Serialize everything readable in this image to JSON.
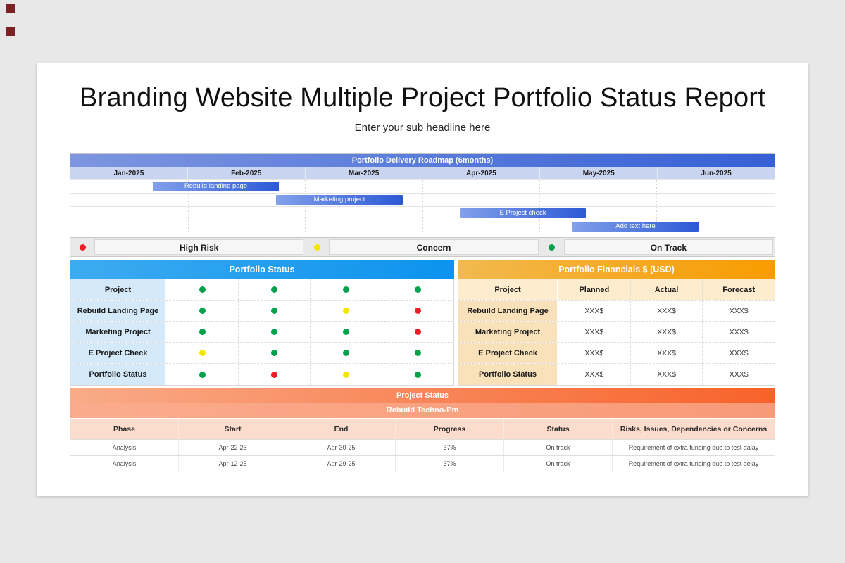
{
  "page": {
    "title": "Branding Website Multiple Project Portfolio Status Report",
    "subtitle": "Enter your sub headline here"
  },
  "roadmap": {
    "title": "Portfolio Delivery Roadmap (6months)",
    "months": [
      "Jan-2025",
      "Feb-2025",
      "Mar-2025",
      "Apr-2025",
      "May-2025",
      "Jun-2025"
    ],
    "bars": [
      {
        "label": "Rebuild landing page",
        "left": "11.7%",
        "width": "17.9%"
      },
      {
        "label": "Marketing project",
        "left": "29.2%",
        "width": "18.0%"
      },
      {
        "label": "E Project check",
        "left": "55.3%",
        "width": "17.9%"
      },
      {
        "label": "Add text here",
        "left": "71.3%",
        "width": "17.9%"
      }
    ]
  },
  "legend": {
    "items": [
      {
        "label": "High Risk",
        "color": "#ee1c25"
      },
      {
        "label": "Concern",
        "color": "#f2e600"
      },
      {
        "label": "On Track",
        "color": "#00a14b"
      }
    ]
  },
  "status_table": {
    "title": "Portfolio Status",
    "col_header": "Project",
    "header_dots": [
      "green",
      "green",
      "green",
      "green"
    ],
    "rows": [
      {
        "name": "Rebuild Landing Page",
        "dots": [
          "green",
          "green",
          "yellow",
          "red"
        ]
      },
      {
        "name": "Marketing Project",
        "dots": [
          "green",
          "green",
          "green",
          "red"
        ]
      },
      {
        "name": "E Project Check",
        "dots": [
          "yellow",
          "green",
          "green",
          "green"
        ]
      },
      {
        "name": "Portfolio Status",
        "dots": [
          "green",
          "red",
          "yellow",
          "green"
        ]
      }
    ]
  },
  "financials_table": {
    "title": "Portfolio Financials $ (USD)",
    "headers": [
      "Project",
      "Planned",
      "Actual",
      "Forecast"
    ],
    "rows": [
      {
        "name": "Rebuild Landing Page",
        "values": [
          "XXX$",
          "XXX$",
          "XXX$"
        ]
      },
      {
        "name": "Marketing Project",
        "values": [
          "XXX$",
          "XXX$",
          "XXX$"
        ]
      },
      {
        "name": "E Project Check",
        "values": [
          "XXX$",
          "XXX$",
          "XXX$"
        ]
      },
      {
        "name": "Portfolio Status",
        "values": [
          "XXX$",
          "XXX$",
          "XXX$"
        ]
      }
    ]
  },
  "project_status": {
    "banner": "Project Status",
    "sub_banner": "Rebuild Techno-Pm",
    "headers": [
      "Phase",
      "Start",
      "End",
      "Progress",
      "Status",
      "Risks, Issues, Dependencies or Concerns"
    ],
    "rows": [
      [
        "Analysis",
        "Apr-22-25",
        "Apr-30-25",
        "37%",
        "On track",
        "Requirement of extra funding due to test dalay"
      ],
      [
        "Analysis",
        "Apr-12-25",
        "Apr-29-25",
        "37%",
        "On track",
        "Requirement of extra funding due to test delay"
      ]
    ]
  },
  "colors": {
    "dots": {
      "green": "#00a14b",
      "yellow": "#f2e600",
      "red": "#ee1c25"
    },
    "roadmap_header_start": "#7e96e1",
    "roadmap_header_end": "#3561d5",
    "gantt_bar_start": "#82a0ea",
    "gantt_bar_end": "#2c59d6",
    "status_header_blue": "#0c93ee",
    "financials_header_start": "#f2b94e",
    "financials_header_end": "#f89c00",
    "banner_start": "#f9ab88",
    "banner_end": "#f8622a",
    "sub_banner": "#f8a283"
  }
}
